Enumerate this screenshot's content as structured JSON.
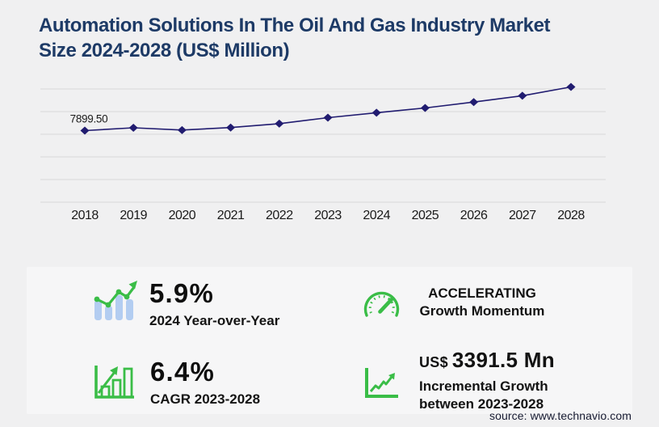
{
  "title": "Automation Solutions In The Oil And Gas Industry Market\nSize 2024-2028 (US$ Million)",
  "chart_data": {
    "type": "line",
    "title": "Automation Solutions In The Oil And Gas Industry Market Size 2024-2028 (US$ Million)",
    "x": [
      "2018",
      "2019",
      "2020",
      "2021",
      "2022",
      "2023",
      "2024",
      "2025",
      "2026",
      "2027",
      "2028"
    ],
    "values": [
      7899.5,
      8210,
      7960,
      8240,
      8670,
      9328,
      9878,
      10400,
      11050,
      11750,
      12719.5
    ],
    "first_point_label": "7899.50",
    "xlabel": "",
    "ylabel": "",
    "ylim": [
      0,
      12500
    ],
    "y_step": 2500,
    "grid": true,
    "legend": "none",
    "marker": "diamond"
  },
  "stats": [
    {
      "value": "5.9%",
      "label": "2024 Year-over-Year",
      "icon": "bars-with-growth-line"
    },
    {
      "line1": "ACCELERATING",
      "line2": "Growth Momentum",
      "icon": "speedometer"
    },
    {
      "value": "6.4%",
      "label": "CAGR 2023-2028",
      "icon": "outlined-bars-with-arrow"
    },
    {
      "currency": "US$",
      "value": "3391.5 Mn",
      "label_line1": "Incremental Growth",
      "label_line2": "between 2023-2028",
      "icon": "zigzag-growth-arrow"
    }
  ],
  "source": "source: www.technavio.com",
  "colors": {
    "background": "#f0f0f1",
    "panel": "#f6f6f7",
    "navy": "#1d3a66",
    "line": "#211c70",
    "grid": "#d8d8d9",
    "axis_text": "#1a1a1a",
    "point_label": "#1c1c1c",
    "green": "#3abd47",
    "lightblue": "#b3cdf1",
    "text": "#121212",
    "source": "#181c33"
  }
}
